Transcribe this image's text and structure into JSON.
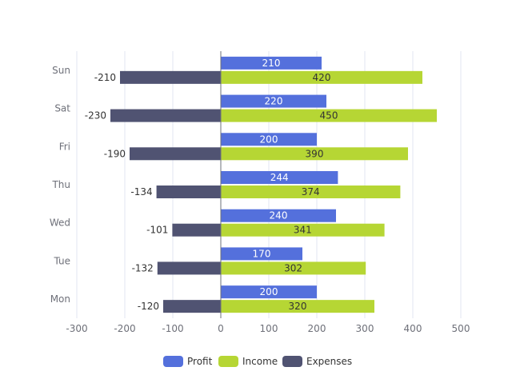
{
  "chart_data": {
    "type": "bar",
    "orientation": "horizontal",
    "categories": [
      "Mon",
      "Tue",
      "Wed",
      "Thu",
      "Fri",
      "Sat",
      "Sun"
    ],
    "series": [
      {
        "name": "Profit",
        "color": "#5470dc",
        "values": [
          200,
          170,
          240,
          244,
          200,
          220,
          210
        ]
      },
      {
        "name": "Income",
        "color": "#b6d634",
        "values": [
          320,
          302,
          341,
          374,
          390,
          450,
          420
        ],
        "stack": "total"
      },
      {
        "name": "Expenses",
        "color": "#505372",
        "values": [
          -120,
          -132,
          -101,
          -134,
          -190,
          -230,
          -210
        ],
        "stack": "total"
      }
    ],
    "xlim": [
      -300,
      500
    ],
    "xticks": [
      -300,
      -200,
      -100,
      0,
      100,
      200,
      300,
      400,
      500
    ],
    "grid": true,
    "legend": "bottom-center"
  }
}
